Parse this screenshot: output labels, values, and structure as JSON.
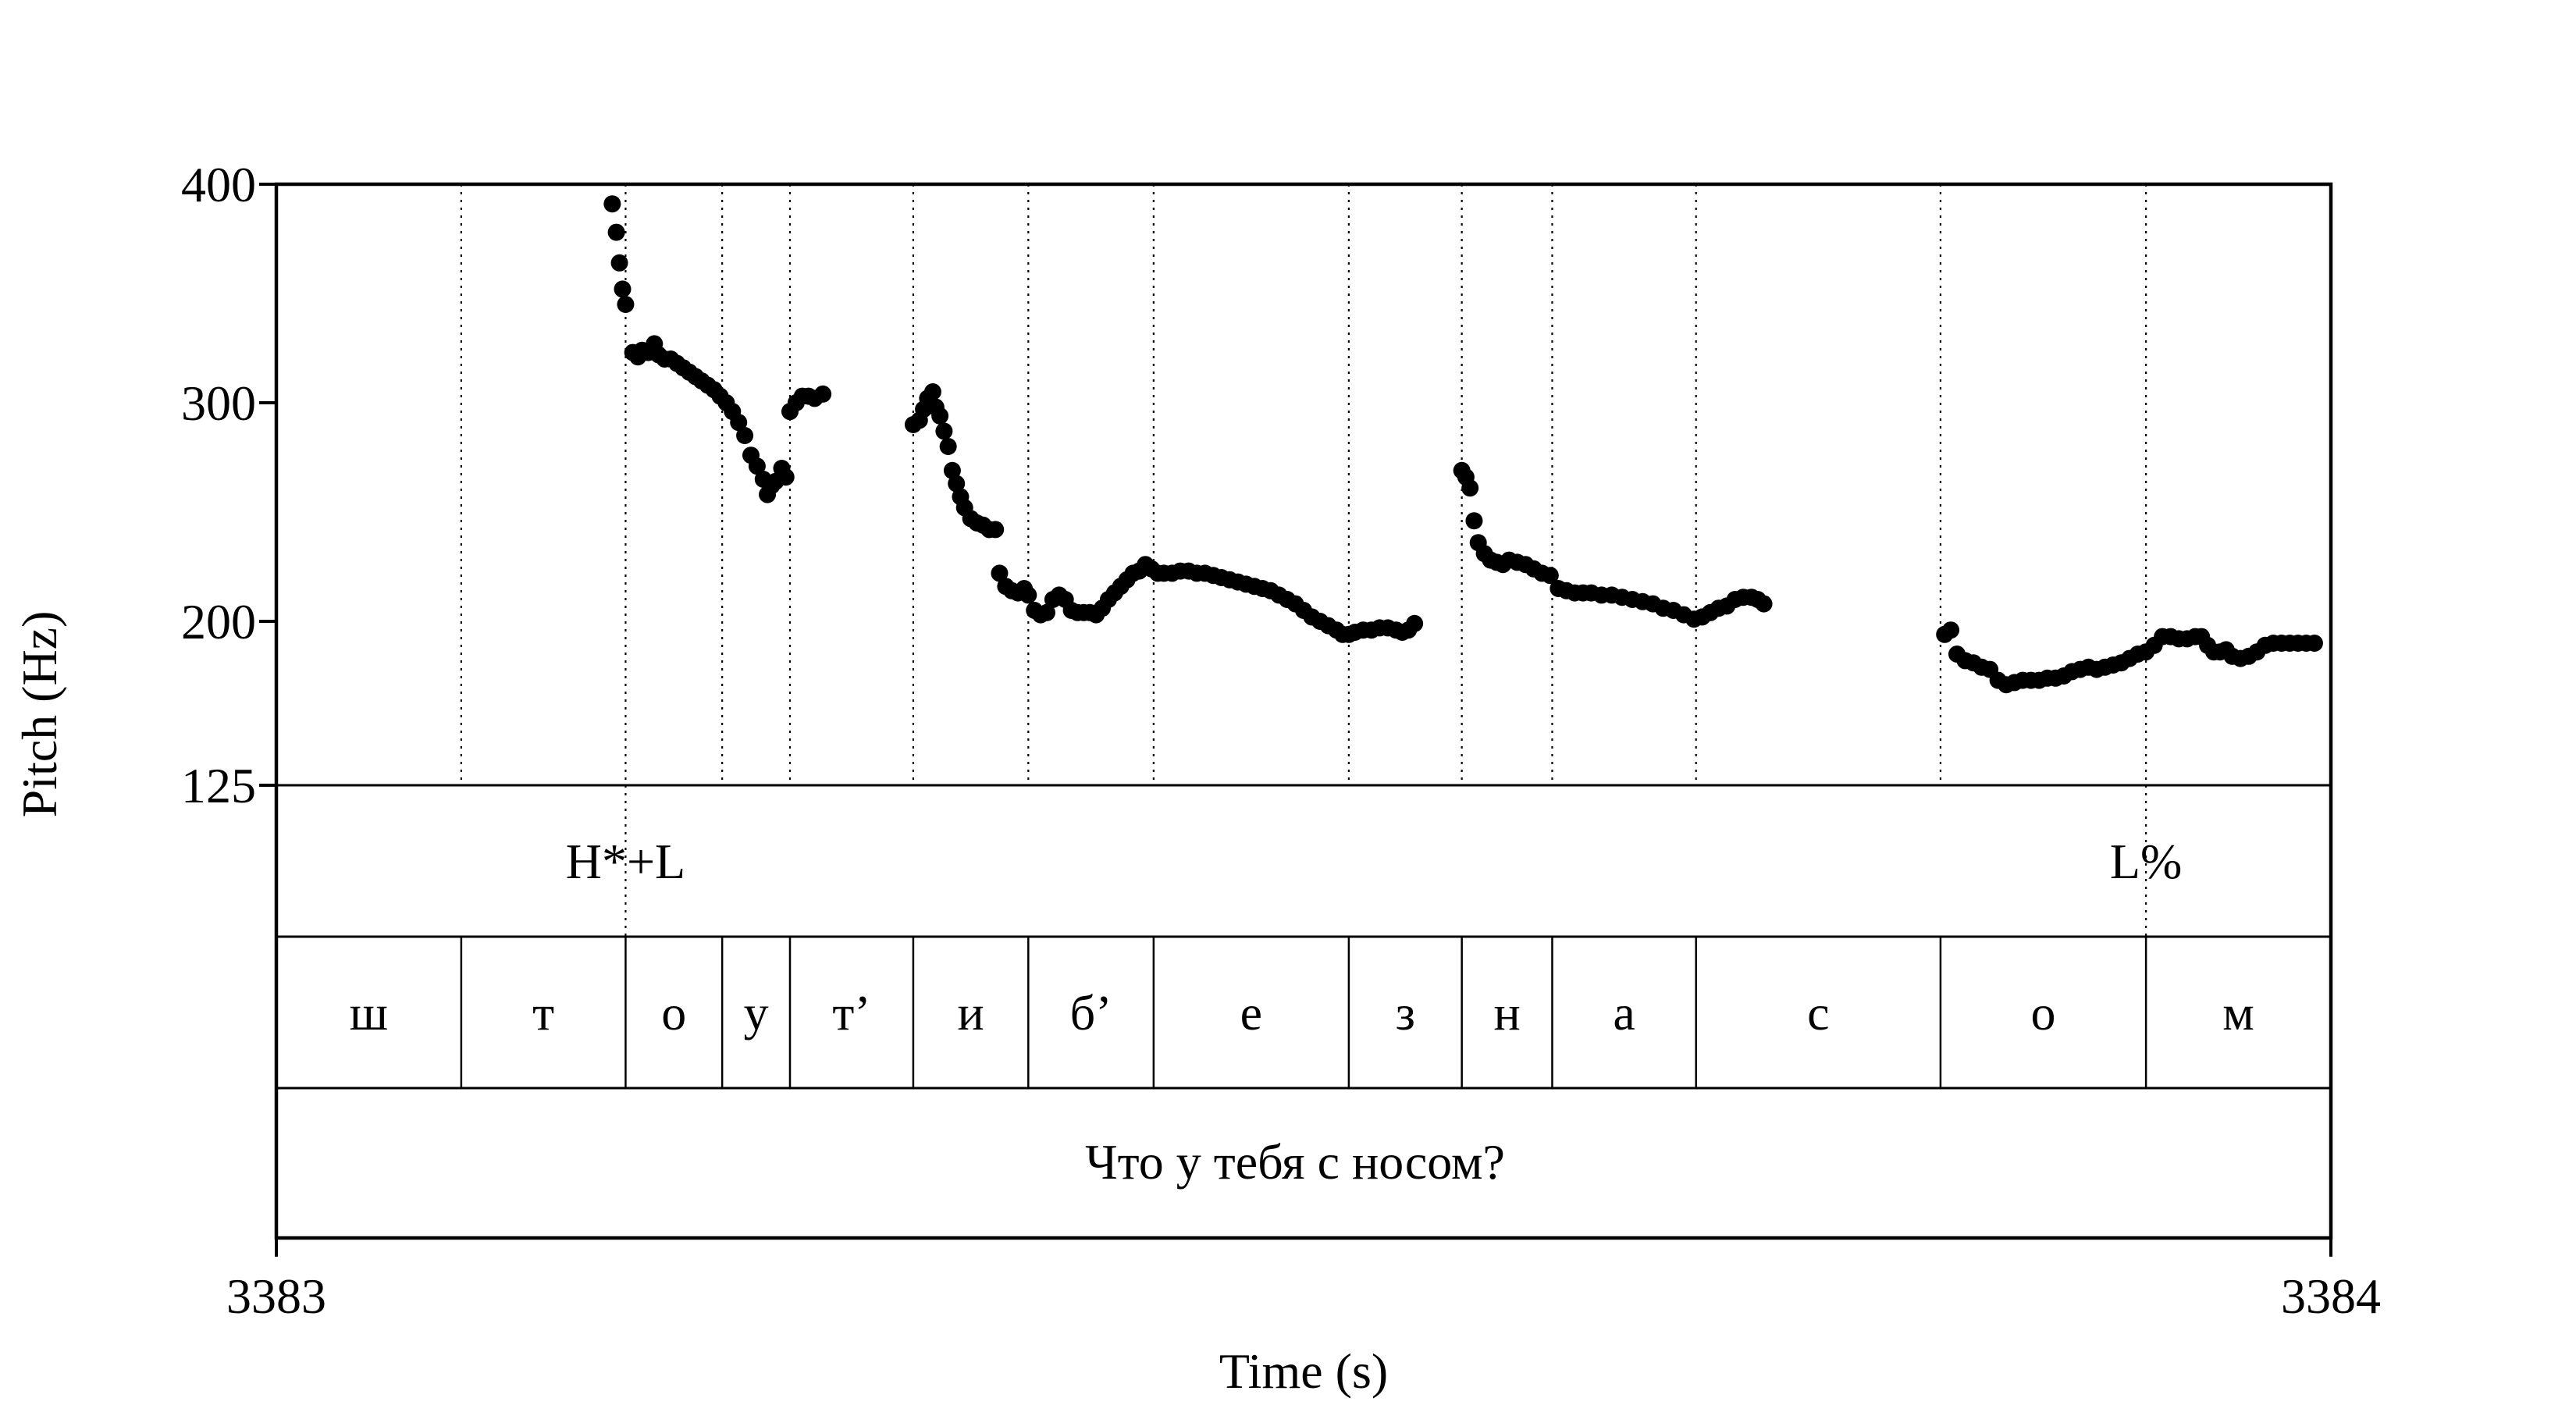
{
  "chart_data": {
    "type": "scatter",
    "xlabel": "Time (s)",
    "ylabel": "Pitch (Hz)",
    "xlim": [
      3383,
      3384
    ],
    "ylim": [
      125,
      400
    ],
    "x_tick_labels": [
      "3383",
      "3384"
    ],
    "y_tick_labels": [
      "125",
      "200",
      "300",
      "400"
    ],
    "y_ticks": [
      125,
      200,
      300,
      400
    ],
    "tones": [
      {
        "t": 3383.17,
        "label": "H*+L"
      },
      {
        "t": 3383.91,
        "label": "L%"
      }
    ],
    "boundaries": [
      3383.09,
      3383.17,
      3383.217,
      3383.25,
      3383.31,
      3383.366,
      3383.427,
      3383.522,
      3383.577,
      3383.621,
      3383.691,
      3383.81,
      3383.91
    ],
    "segments": [
      "ш",
      "т",
      "о",
      "у",
      "т’",
      "и",
      "б’",
      "е",
      "з",
      "н",
      "а",
      "с",
      "о",
      "м"
    ],
    "sentence": "Что у тебя с носом?",
    "series": [
      {
        "points": [
          [
            3383.1635,
            391
          ],
          [
            3383.1655,
            378
          ],
          [
            3383.167,
            364
          ],
          [
            3383.1685,
            352
          ],
          [
            3383.17,
            345
          ],
          [
            3383.1735,
            323
          ],
          [
            3383.176,
            321
          ],
          [
            3383.178,
            324
          ],
          [
            3383.181,
            323
          ],
          [
            3383.184,
            327
          ],
          [
            3383.186,
            322
          ],
          [
            3383.189,
            320
          ],
          [
            3383.192,
            320
          ],
          [
            3383.195,
            318
          ],
          [
            3383.198,
            316
          ],
          [
            3383.201,
            314
          ],
          [
            3383.204,
            312
          ],
          [
            3383.207,
            310
          ],
          [
            3383.21,
            308
          ],
          [
            3383.213,
            306
          ],
          [
            3383.216,
            303
          ],
          [
            3383.219,
            300
          ],
          [
            3383.222,
            296
          ],
          [
            3383.225,
            291
          ],
          [
            3383.228,
            285
          ],
          [
            3383.231,
            276
          ],
          [
            3383.234,
            271
          ],
          [
            3383.237,
            265
          ],
          [
            3383.239,
            258
          ],
          [
            3383.241,
            262
          ],
          [
            3383.243,
            264
          ],
          [
            3383.246,
            270
          ],
          [
            3383.248,
            266
          ],
          [
            3383.25,
            296
          ],
          [
            3383.253,
            300
          ],
          [
            3383.256,
            303
          ],
          [
            3383.259,
            303
          ],
          [
            3383.262,
            302
          ],
          [
            3383.266,
            304
          ],
          [
            3383.31,
            290
          ],
          [
            3383.313,
            292
          ],
          [
            3383.315,
            297
          ],
          [
            3383.317,
            302
          ],
          [
            3383.3195,
            305
          ],
          [
            3383.321,
            298
          ],
          [
            3383.323,
            294
          ],
          [
            3383.325,
            287
          ],
          [
            3383.327,
            280
          ],
          [
            3383.329,
            269
          ],
          [
            3383.331,
            263
          ],
          [
            3383.333,
            257
          ],
          [
            3383.335,
            252
          ],
          [
            3383.338,
            247
          ],
          [
            3383.341,
            245
          ],
          [
            3383.344,
            244
          ],
          [
            3383.347,
            242
          ],
          [
            3383.35,
            242
          ],
          [
            3383.352,
            222
          ],
          [
            3383.355,
            216
          ],
          [
            3383.358,
            214
          ],
          [
            3383.361,
            213
          ],
          [
            3383.364,
            215
          ],
          [
            3383.366,
            212
          ],
          [
            3383.369,
            205
          ],
          [
            3383.372,
            203
          ],
          [
            3383.375,
            204
          ],
          [
            3383.378,
            210
          ],
          [
            3383.381,
            212
          ],
          [
            3383.384,
            210
          ],
          [
            3383.387,
            205
          ],
          [
            3383.39,
            204
          ],
          [
            3383.393,
            204
          ],
          [
            3383.396,
            204
          ],
          [
            3383.399,
            203
          ],
          [
            3383.402,
            206
          ],
          [
            3383.405,
            210
          ],
          [
            3383.408,
            213
          ],
          [
            3383.411,
            216
          ],
          [
            3383.414,
            219
          ],
          [
            3383.417,
            222
          ],
          [
            3383.42,
            223
          ],
          [
            3383.423,
            226
          ],
          [
            3383.426,
            224
          ],
          [
            3383.429,
            222
          ],
          [
            3383.432,
            222
          ],
          [
            3383.436,
            222
          ],
          [
            3383.44,
            223
          ],
          [
            3383.444,
            223
          ],
          [
            3383.448,
            222
          ],
          [
            3383.452,
            222
          ],
          [
            3383.456,
            221
          ],
          [
            3383.46,
            220
          ],
          [
            3383.464,
            219
          ],
          [
            3383.468,
            218
          ],
          [
            3383.472,
            217
          ],
          [
            3383.476,
            216
          ],
          [
            3383.48,
            215
          ],
          [
            3383.484,
            214
          ],
          [
            3383.488,
            212
          ],
          [
            3383.492,
            210
          ],
          [
            3383.496,
            208
          ],
          [
            3383.5,
            205
          ],
          [
            3383.504,
            202
          ],
          [
            3383.508,
            200
          ],
          [
            3383.512,
            198
          ],
          [
            3383.516,
            196
          ],
          [
            3383.519,
            194
          ],
          [
            3383.522,
            194
          ],
          [
            3383.525,
            195
          ],
          [
            3383.529,
            196
          ],
          [
            3383.533,
            196
          ],
          [
            3383.537,
            197
          ],
          [
            3383.541,
            197
          ],
          [
            3383.545,
            196
          ],
          [
            3383.548,
            195
          ],
          [
            3383.551,
            196
          ],
          [
            3383.554,
            199
          ],
          [
            3383.577,
            269
          ],
          [
            3383.579,
            266
          ],
          [
            3383.581,
            261
          ],
          [
            3383.583,
            246
          ],
          [
            3383.585,
            236
          ],
          [
            3383.588,
            231
          ],
          [
            3383.591,
            228
          ],
          [
            3383.594,
            227
          ],
          [
            3383.597,
            226
          ],
          [
            3383.6,
            228
          ],
          [
            3383.604,
            227
          ],
          [
            3383.608,
            226
          ],
          [
            3383.612,
            224
          ],
          [
            3383.616,
            222
          ],
          [
            3383.62,
            221
          ],
          [
            3383.624,
            215
          ],
          [
            3383.628,
            214
          ],
          [
            3383.632,
            213
          ],
          [
            3383.636,
            213
          ],
          [
            3383.64,
            213
          ],
          [
            3383.645,
            212
          ],
          [
            3383.65,
            212
          ],
          [
            3383.655,
            211
          ],
          [
            3383.66,
            210
          ],
          [
            3383.665,
            209
          ],
          [
            3383.67,
            208
          ],
          [
            3383.675,
            206
          ],
          [
            3383.68,
            205
          ],
          [
            3383.685,
            203
          ],
          [
            3383.69,
            201
          ],
          [
            3383.694,
            202
          ],
          [
            3383.698,
            204
          ],
          [
            3383.702,
            206
          ],
          [
            3383.706,
            207
          ],
          [
            3383.71,
            210
          ],
          [
            3383.714,
            211
          ],
          [
            3383.718,
            211
          ],
          [
            3383.721,
            210
          ],
          [
            3383.724,
            208
          ],
          [
            3383.812,
            194
          ],
          [
            3383.815,
            196
          ],
          [
            3383.818,
            185
          ],
          [
            3383.822,
            182
          ],
          [
            3383.826,
            181
          ],
          [
            3383.83,
            179
          ],
          [
            3383.834,
            178
          ],
          [
            3383.838,
            173
          ],
          [
            3383.842,
            171
          ],
          [
            3383.846,
            172
          ],
          [
            3383.85,
            173
          ],
          [
            3383.854,
            173
          ],
          [
            3383.858,
            173
          ],
          [
            3383.862,
            174
          ],
          [
            3383.866,
            174
          ],
          [
            3383.87,
            175
          ],
          [
            3383.874,
            177
          ],
          [
            3383.878,
            178
          ],
          [
            3383.882,
            179
          ],
          [
            3383.886,
            178
          ],
          [
            3383.89,
            179
          ],
          [
            3383.894,
            180
          ],
          [
            3383.898,
            181
          ],
          [
            3383.902,
            183
          ],
          [
            3383.906,
            185
          ],
          [
            3383.91,
            186
          ],
          [
            3383.914,
            189
          ],
          [
            3383.918,
            193
          ],
          [
            3383.922,
            193
          ],
          [
            3383.926,
            192
          ],
          [
            3383.93,
            192
          ],
          [
            3383.934,
            193
          ],
          [
            3383.937,
            193
          ],
          [
            3383.94,
            189
          ],
          [
            3383.943,
            186
          ],
          [
            3383.946,
            186
          ],
          [
            3383.949,
            187
          ],
          [
            3383.952,
            184
          ],
          [
            3383.956,
            183
          ],
          [
            3383.96,
            184
          ],
          [
            3383.964,
            186
          ],
          [
            3383.968,
            189
          ],
          [
            3383.972,
            190
          ],
          [
            3383.976,
            190
          ],
          [
            3383.98,
            190
          ],
          [
            3383.984,
            190
          ],
          [
            3383.988,
            190
          ],
          [
            3383.992,
            190
          ]
        ]
      }
    ]
  }
}
